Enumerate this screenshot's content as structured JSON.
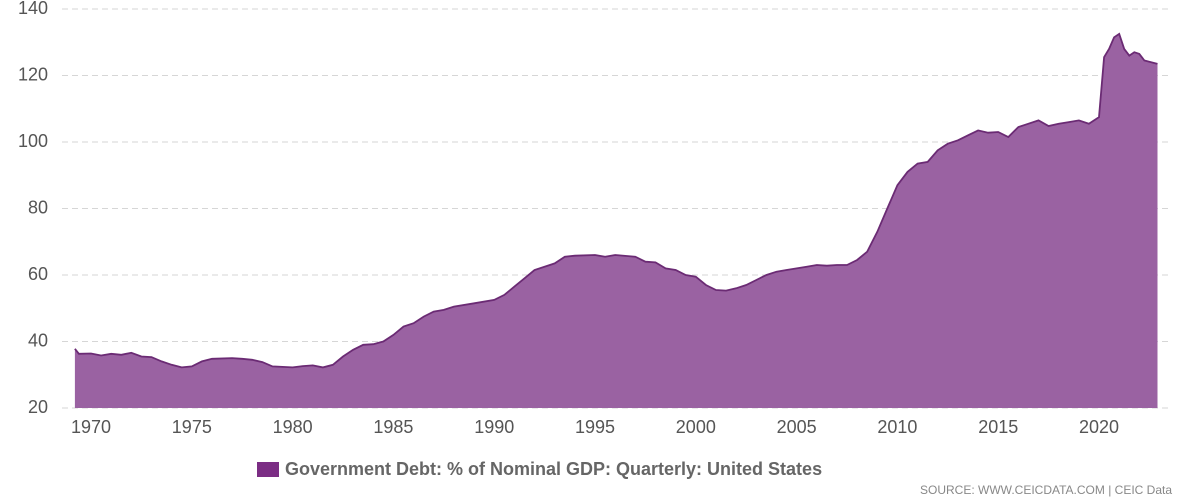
{
  "chart_data": {
    "type": "area",
    "series": [
      {
        "name": "Government Debt: % of Nominal GDP: Quarterly: United States",
        "color": "#9a62a2",
        "line_color": "#6b2b74",
        "legend_color": "#7b2d84",
        "x": [
          1969.2,
          1969.4,
          1970,
          1970.5,
          1971,
          1971.5,
          1972,
          1972.5,
          1973,
          1973.5,
          1974,
          1974.5,
          1975,
          1975.5,
          1976,
          1977,
          1977.5,
          1978,
          1978.5,
          1979,
          1980,
          1980.5,
          1981,
          1981.5,
          1982,
          1982.5,
          1983,
          1983.5,
          1984,
          1984.5,
          1985,
          1985.5,
          1986,
          1986.5,
          1987,
          1987.5,
          1988,
          1989,
          1990,
          1990.5,
          1991,
          1991.5,
          1992,
          1993,
          1993.5,
          1994,
          1995,
          1995.5,
          1996,
          1997,
          1997.5,
          1998,
          1998.5,
          1999,
          1999.5,
          2000,
          2000.5,
          2001,
          2001.5,
          2002,
          2002.5,
          2003,
          2003.5,
          2004,
          2004.5,
          2005,
          2005.5,
          2006,
          2006.5,
          2007,
          2007.5,
          2008,
          2008.5,
          2009,
          2009.5,
          2010,
          2010.5,
          2011,
          2011.5,
          2012,
          2012.5,
          2013,
          2013.5,
          2014,
          2014.5,
          2015,
          2015.5,
          2016,
          2016.5,
          2017,
          2017.5,
          2018,
          2018.5,
          2019,
          2019.5,
          2020,
          2020.25,
          2020.5,
          2020.75,
          2021,
          2021.25,
          2021.5,
          2021.75,
          2022,
          2022.25,
          2022.9
        ],
        "values": [
          37.8,
          36.3,
          36.4,
          35.8,
          36.3,
          36,
          36.6,
          35.5,
          35.3,
          34,
          33,
          32.2,
          32.5,
          34,
          34.8,
          35,
          34.8,
          34.5,
          33.8,
          32.5,
          32.2,
          32.6,
          32.8,
          32.2,
          33,
          35.5,
          37.5,
          39,
          39.2,
          40,
          42,
          44.5,
          45.5,
          47.5,
          49,
          49.5,
          50.5,
          51.5,
          52.5,
          54,
          56.5,
          59,
          61.5,
          63.5,
          65.5,
          65.8,
          66,
          65.5,
          66,
          65.5,
          64,
          63.8,
          62,
          61.5,
          60,
          59.5,
          57,
          55.5,
          55.3,
          56,
          57,
          58.5,
          60,
          61,
          61.5,
          62,
          62.5,
          63,
          62.8,
          63,
          63,
          64.5,
          67,
          73,
          80,
          87,
          91,
          93.5,
          94,
          97.5,
          99.5,
          100.5,
          102,
          103.5,
          102.8,
          103,
          101.5,
          104.5,
          105.5,
          106.5,
          104.8,
          105.5,
          106,
          106.5,
          105.5,
          107.5,
          125.5,
          128,
          131.5,
          132.5,
          128,
          126,
          127,
          126.5,
          124.5,
          123.5
        ]
      }
    ],
    "xlim": [
      1968.56,
      2023.62
    ],
    "xticks": [
      1970,
      1975,
      1980,
      1985,
      1990,
      1995,
      2000,
      2005,
      2010,
      2015,
      2020
    ],
    "ylim": [
      20,
      140
    ],
    "yticks": [
      20,
      40,
      60,
      80,
      100,
      120,
      140
    ],
    "grid": true,
    "source": "SOURCE: WWW.CEICDATA.COM | CEIC Data"
  }
}
